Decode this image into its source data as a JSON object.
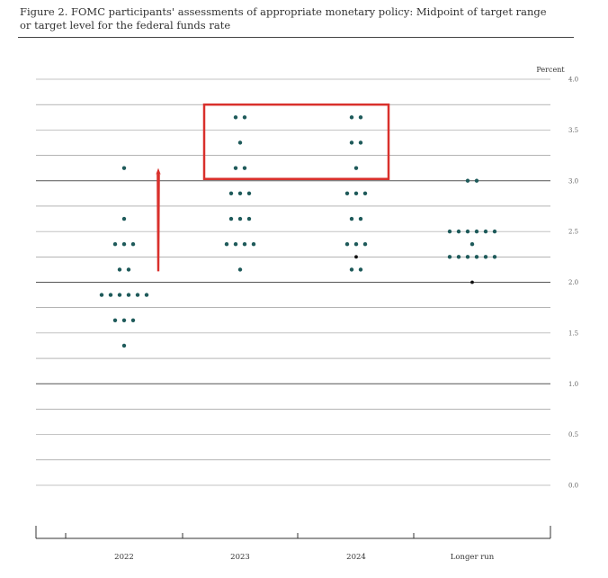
{
  "title": {
    "line1": "Figure 2.  FOMC participants' assessments of appropriate monetary policy:  Midpoint of target range",
    "line2": "or target level for the federal funds rate"
  },
  "colors": {
    "dot": "#1e5a5a",
    "dark_dot": "#111111",
    "highlight": "#d9302c",
    "grid": "#888888",
    "grid_strong": "#555555"
  },
  "chart_data": {
    "type": "scatter",
    "ylabel": "Percent",
    "ylim": [
      0.0,
      4.0
    ],
    "yticks": [
      4.0,
      3.5,
      3.0,
      2.5,
      2.0,
      1.5,
      1.0,
      0.5,
      0.0
    ],
    "ytick_labels": [
      "4.0",
      "3.5",
      "3.0",
      "2.5",
      "2.0",
      "1.5",
      "1.0",
      "0.5",
      "0.0"
    ],
    "categories": [
      "2022",
      "2023",
      "2024",
      "Longer run"
    ],
    "series": [
      {
        "category": "2022",
        "points": [
          {
            "y": 3.125,
            "count": 1
          },
          {
            "y": 2.625,
            "count": 1
          },
          {
            "y": 2.375,
            "count": 3
          },
          {
            "y": 2.125,
            "count": 2
          },
          {
            "y": 1.875,
            "count": 6
          },
          {
            "y": 1.625,
            "count": 3
          },
          {
            "y": 1.375,
            "count": 1
          }
        ]
      },
      {
        "category": "2023",
        "points": [
          {
            "y": 3.625,
            "count": 2
          },
          {
            "y": 3.375,
            "count": 1
          },
          {
            "y": 3.125,
            "count": 2
          },
          {
            "y": 2.875,
            "count": 3
          },
          {
            "y": 2.625,
            "count": 3
          },
          {
            "y": 2.375,
            "count": 4
          },
          {
            "y": 2.125,
            "count": 1
          }
        ]
      },
      {
        "category": "2024",
        "points": [
          {
            "y": 3.625,
            "count": 2
          },
          {
            "y": 3.375,
            "count": 2
          },
          {
            "y": 3.125,
            "count": 1
          },
          {
            "y": 2.875,
            "count": 3
          },
          {
            "y": 2.625,
            "count": 2
          },
          {
            "y": 2.375,
            "count": 3
          },
          {
            "y": 2.25,
            "count": 1,
            "dark": true
          },
          {
            "y": 2.125,
            "count": 2
          }
        ]
      },
      {
        "category": "Longer run",
        "points": [
          {
            "y": 3.0,
            "count": 2
          },
          {
            "y": 2.5,
            "count": 6
          },
          {
            "y": 2.375,
            "count": 1
          },
          {
            "y": 2.25,
            "count": 6
          },
          {
            "y": 2.0,
            "count": 1,
            "dark": true
          }
        ]
      }
    ],
    "annotations": [
      {
        "type": "box",
        "categories": [
          "2023",
          "2024"
        ],
        "y_range": [
          3.0,
          3.75
        ]
      },
      {
        "type": "arrow",
        "category": "2022",
        "from_y": 2.125,
        "to_y": 3.125
      }
    ]
  }
}
